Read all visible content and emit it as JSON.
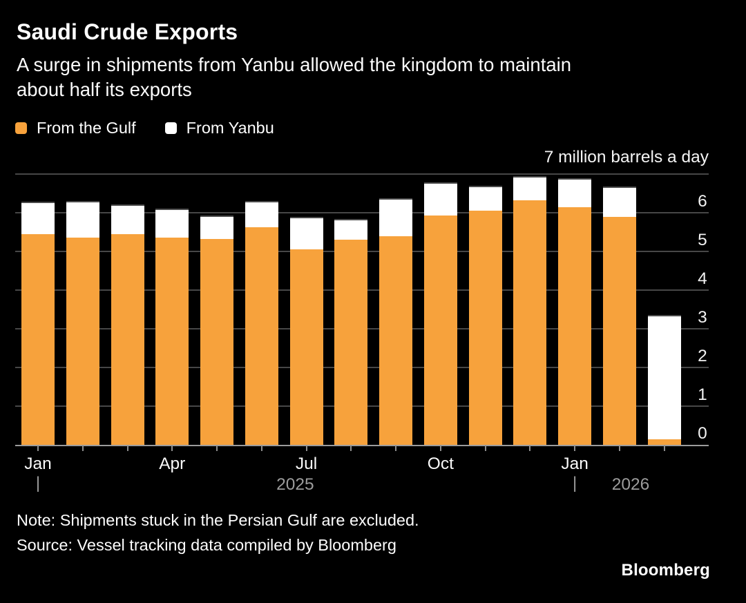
{
  "header": {
    "title": "Saudi Crude Exports",
    "subtitle_lines": [
      "A surge in shipments from Yanbu allowed the kingdom to maintain",
      "about half its exports"
    ]
  },
  "legend": [
    {
      "label": "From the Gulf",
      "color": "#F7A23C"
    },
    {
      "label": "From Yanbu",
      "color": "#FFFFFF"
    }
  ],
  "chart_data": {
    "type": "bar",
    "stacked": true,
    "title": "Saudi Crude Exports",
    "unit_label": "7 million barrels a day",
    "ylabel": "million barrels a day",
    "ylim": [
      0,
      7
    ],
    "yticks": [
      0,
      1,
      2,
      3,
      4,
      5,
      6
    ],
    "grid": true,
    "axis_side": "right",
    "categories": [
      "Jan 2025",
      "Feb 2025",
      "Mar 2025",
      "Apr 2025",
      "May 2025",
      "Jun 2025",
      "Jul 2025",
      "Aug 2025",
      "Sep 2025",
      "Oct 2025",
      "Nov 2025",
      "Dec 2025",
      "Jan 2026",
      "Feb 2026",
      "Mar 2026"
    ],
    "series": [
      {
        "name": "From the Gulf",
        "color": "#F7A23C",
        "values": [
          5.45,
          5.35,
          5.45,
          5.35,
          5.33,
          5.62,
          5.05,
          5.31,
          5.4,
          5.92,
          6.05,
          6.32,
          6.14,
          5.89,
          0.15
        ]
      },
      {
        "name": "From Yanbu",
        "color": "#FFFFFF",
        "values": [
          0.84,
          0.96,
          0.77,
          0.76,
          0.59,
          0.69,
          0.85,
          0.53,
          0.98,
          0.86,
          0.64,
          0.63,
          0.75,
          0.79,
          3.2
        ]
      }
    ],
    "xticks": [
      {
        "index": 0,
        "label": "Jan"
      },
      {
        "index": 3,
        "label": "Apr"
      },
      {
        "index": 6,
        "label": "Jul"
      },
      {
        "index": 9,
        "label": "Oct"
      },
      {
        "index": 12,
        "label": "Jan"
      }
    ],
    "year_markers": [
      {
        "index": 0,
        "year": "2025"
      },
      {
        "index": 12,
        "year": "2026"
      }
    ]
  },
  "footer": {
    "note": "Note: Shipments stuck in the Persian Gulf are excluded.",
    "source": "Source: Vessel tracking data compiled by Bloomberg",
    "brand": "Bloomberg"
  },
  "colors": {
    "background": "#000000",
    "text": "#FFFFFF",
    "gridline": "#474747",
    "baseline": "#9C9C9C",
    "muted": "#9C9C9C",
    "gulf_orange": "#F7A23C",
    "yanbu_white": "#FFFFFF"
  }
}
